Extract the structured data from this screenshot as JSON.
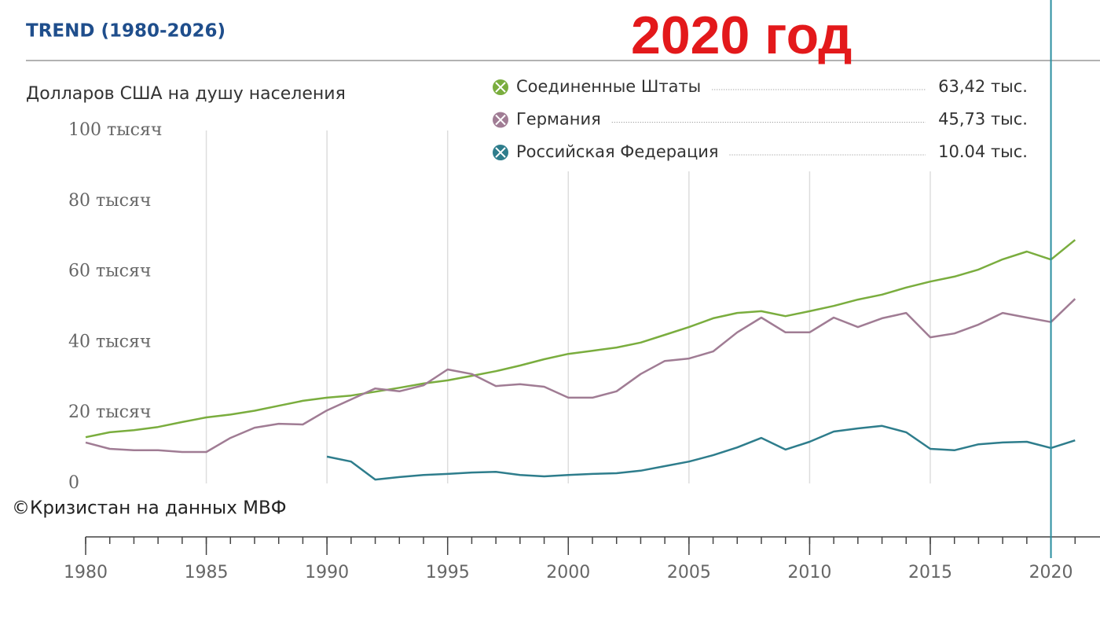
{
  "chart_data": {
    "type": "line",
    "title": "TREND (1980-2026)",
    "annotation": "2020 год",
    "y_label": "Долларов США на душу населения",
    "source": "©Кризистан на данных МВФ",
    "x": [
      1980,
      1981,
      1982,
      1983,
      1984,
      1985,
      1986,
      1987,
      1988,
      1989,
      1990,
      1991,
      1992,
      1993,
      1994,
      1995,
      1996,
      1997,
      1998,
      1999,
      2000,
      2001,
      2002,
      2003,
      2004,
      2005,
      2006,
      2007,
      2008,
      2009,
      2010,
      2011,
      2012,
      2013,
      2014,
      2015,
      2016,
      2017,
      2018,
      2019,
      2020,
      2021
    ],
    "xlim": [
      1980,
      2022
    ],
    "xticks": [
      1980,
      1985,
      1990,
      1995,
      2000,
      2005,
      2010,
      2015,
      2020
    ],
    "ylim": [
      0,
      100000
    ],
    "yticks": [
      {
        "value": 0,
        "label": "0"
      },
      {
        "value": 20000,
        "label": "20 тысяч"
      },
      {
        "value": 40000,
        "label": "40 тысяч"
      },
      {
        "value": 60000,
        "label": "60 тысяч"
      },
      {
        "value": 80000,
        "label": "80 тысяч"
      },
      {
        "value": 100000,
        "label": "100 тысяч"
      }
    ],
    "grid": true,
    "highlight_x": 2020,
    "highlight_color": "#2a8fa0",
    "series": [
      {
        "name": "Соединенные Штаты",
        "color": "#7aad3e",
        "values": [
          13100,
          14500,
          15100,
          16000,
          17400,
          18700,
          19500,
          20600,
          22000,
          23400,
          24300,
          24900,
          26000,
          27100,
          28300,
          29200,
          30500,
          31800,
          33400,
          35200,
          36700,
          37600,
          38500,
          39900,
          42100,
          44300,
          46800,
          48300,
          48800,
          47400,
          48800,
          50300,
          52100,
          53500,
          55500,
          57200,
          58600,
          60600,
          63500,
          65700,
          63420,
          69000
        ],
        "value_labels": [
          null,
          null,
          null,
          null,
          null,
          null,
          null,
          null,
          null,
          null,
          null,
          null,
          null,
          null,
          null,
          null,
          null,
          null,
          null,
          null,
          null,
          null,
          null,
          null,
          null,
          null,
          null,
          null,
          null,
          null,
          null,
          null,
          null,
          null,
          null,
          null,
          null,
          null,
          null,
          null,
          "63,42 тыс.",
          null
        ]
      },
      {
        "name": "Германия",
        "color": "#a07c94",
        "values": [
          11600,
          9800,
          9400,
          9400,
          8900,
          8900,
          12900,
          15800,
          16900,
          16700,
          20700,
          23800,
          26900,
          26100,
          27800,
          32300,
          31000,
          27600,
          28100,
          27400,
          24300,
          24300,
          26100,
          31000,
          34700,
          35400,
          37400,
          42800,
          47000,
          42800,
          42800,
          47000,
          44300,
          46800,
          48300,
          41400,
          42500,
          45000,
          48300,
          47000,
          45730,
          52300
        ],
        "value_labels": [
          null,
          null,
          null,
          null,
          null,
          null,
          null,
          null,
          null,
          null,
          null,
          null,
          null,
          null,
          null,
          null,
          null,
          null,
          null,
          null,
          null,
          null,
          null,
          null,
          null,
          null,
          null,
          null,
          null,
          null,
          null,
          null,
          null,
          null,
          null,
          null,
          null,
          null,
          null,
          null,
          "45,73 тыс.",
          null
        ]
      },
      {
        "name": "Российская Федерация",
        "color": "#2e7d8c",
        "values": [
          null,
          null,
          null,
          null,
          null,
          null,
          null,
          null,
          null,
          null,
          7600,
          6200,
          1100,
          1800,
          2400,
          2700,
          3100,
          3300,
          2400,
          2000,
          2400,
          2700,
          2900,
          3600,
          4900,
          6200,
          8000,
          10200,
          12900,
          9600,
          11800,
          14700,
          15600,
          16300,
          14500,
          9800,
          9400,
          11100,
          11600,
          11800,
          10040,
          12200
        ],
        "value_labels": [
          null,
          null,
          null,
          null,
          null,
          null,
          null,
          null,
          null,
          null,
          null,
          null,
          null,
          null,
          null,
          null,
          null,
          null,
          null,
          null,
          null,
          null,
          null,
          null,
          null,
          null,
          null,
          null,
          null,
          null,
          null,
          null,
          null,
          null,
          null,
          null,
          null,
          null,
          null,
          null,
          "10.04 тыс.",
          null
        ]
      }
    ]
  }
}
